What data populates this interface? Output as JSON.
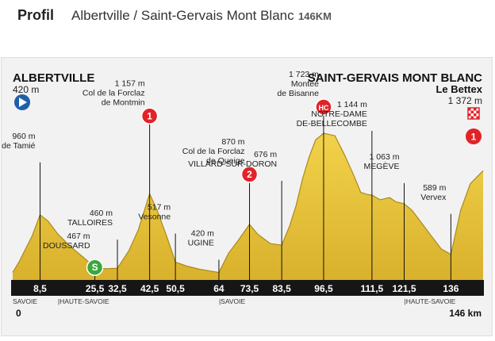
{
  "header": {
    "title": "Profil",
    "subtitle": "Albertville / Saint-Gervais Mont Blanc",
    "distance": "146KM"
  },
  "start": {
    "name": "ALBERTVILLE",
    "alt": "420 m"
  },
  "finish": {
    "name": "SAINT-GERVAIS MONT BLANC",
    "name2": "Le Bettex",
    "alt": "1 372 m"
  },
  "markers": [
    {
      "km": 8.5,
      "label": "8,5",
      "alt": "960 m",
      "name": "Collet de Tamié",
      "name2": ""
    },
    {
      "km": 25.5,
      "label": "25,5",
      "alt": "467 m",
      "name": "DOUSSARD",
      "name2": "",
      "badge": "S"
    },
    {
      "km": 32.5,
      "label": "32,5",
      "alt": "460 m",
      "name": "TALLOIRES",
      "name2": ""
    },
    {
      "km": 42.5,
      "label": "42,5",
      "alt": "1 157 m",
      "name": "Col de la Forclaz",
      "name2": "de Montmin",
      "badge": "1"
    },
    {
      "km": 50.5,
      "label": "50,5",
      "alt": "517 m",
      "name": "Vesonne",
      "name2": ""
    },
    {
      "km": 64,
      "label": "64",
      "alt": "420 m",
      "name": "UGINE",
      "name2": ""
    },
    {
      "km": 73.5,
      "label": "73,5",
      "alt": "870 m",
      "name": "Col de la Forclaz",
      "name2": "de Queige",
      "badge": "2"
    },
    {
      "km": 83.5,
      "label": "83,5",
      "alt": "676 m",
      "name": "VILLARD-SUR-DORON",
      "name2": ""
    },
    {
      "km": 96.5,
      "label": "96,5",
      "alt": "1 723 m",
      "name": "Montée",
      "name2": "de Bisanne",
      "badge": "HC"
    },
    {
      "km": 111.5,
      "label": "111,5",
      "alt": "1 144 m",
      "name": "NOTRE-DAME",
      "name2": "DE-BELLECOMBE"
    },
    {
      "km": 121.5,
      "label": "121,5",
      "alt": "1 063 m",
      "name": "MEGÈVE",
      "name2": ""
    },
    {
      "km": 136,
      "label": "136",
      "alt": "589 m",
      "name": "Vervex",
      "name2": ""
    }
  ],
  "regions": [
    {
      "km": 0,
      "label": "SAVOIE"
    },
    {
      "km": 14,
      "label": "HAUTE-SAVOIE"
    },
    {
      "km": 64,
      "label": "SAVOIE"
    },
    {
      "km": 121.5,
      "label": "HAUTE-SAVOIE"
    }
  ],
  "axis": {
    "start_label": "0",
    "end_label": "146 km"
  },
  "chart_data": {
    "type": "area",
    "xlabel": "",
    "ylabel": "",
    "xlim": [
      0,
      146
    ],
    "ylim": [
      0,
      2000
    ],
    "x": [
      0,
      2,
      4,
      6,
      8.5,
      11,
      14,
      18,
      22,
      25.5,
      29,
      32.5,
      36,
      39,
      42.5,
      45,
      48,
      50.5,
      54,
      58,
      62,
      64,
      67,
      70,
      73.5,
      76,
      80,
      83.5,
      86,
      88,
      90,
      92,
      94,
      96.5,
      100,
      103,
      106,
      108,
      110,
      111.5,
      114,
      117,
      119,
      121.5,
      124,
      127,
      130,
      133,
      136,
      139,
      142,
      146
    ],
    "y": [
      420,
      520,
      640,
      760,
      960,
      900,
      780,
      660,
      560,
      467,
      455,
      460,
      620,
      820,
      1157,
      990,
      740,
      517,
      480,
      450,
      430,
      420,
      600,
      720,
      870,
      780,
      690,
      676,
      860,
      1050,
      1300,
      1500,
      1660,
      1723,
      1700,
      1520,
      1320,
      1170,
      1150,
      1144,
      1100,
      1120,
      1080,
      1063,
      1000,
      880,
      760,
      640,
      589,
      1000,
      1250,
      1372
    ],
    "colors": {
      "fill": "#e8c53a",
      "ridge": "#a88a1e",
      "base": "#161616",
      "hc": "#e32228",
      "start": "#1f5fa8",
      "sprint": "#3aa83d"
    }
  }
}
